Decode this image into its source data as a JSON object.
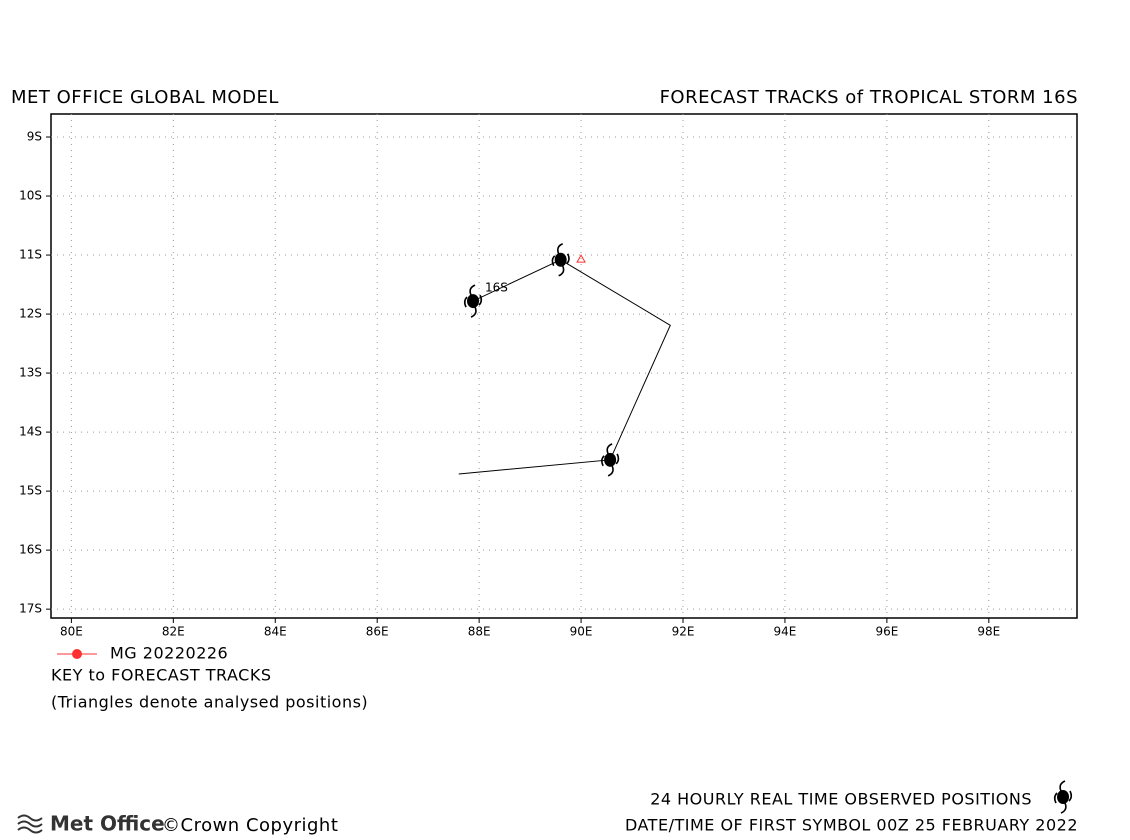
{
  "chart_data": {
    "type": "track",
    "title_left": "MET OFFICE GLOBAL MODEL",
    "title_right": "FORECAST TRACKS of TROPICAL STORM 16S",
    "xlim": [
      79.6,
      99.73
    ],
    "ylim": [
      -17.15,
      -8.61
    ],
    "xticks": [
      {
        "value": 80,
        "label": "80E"
      },
      {
        "value": 82,
        "label": "82E"
      },
      {
        "value": 84,
        "label": "84E"
      },
      {
        "value": 86,
        "label": "86E"
      },
      {
        "value": 88,
        "label": "88E"
      },
      {
        "value": 90,
        "label": "90E"
      },
      {
        "value": 92,
        "label": "92E"
      },
      {
        "value": 94,
        "label": "94E"
      },
      {
        "value": 96,
        "label": "96E"
      },
      {
        "value": 98,
        "label": "98E"
      }
    ],
    "yticks": [
      {
        "value": -9,
        "label": "9S"
      },
      {
        "value": -10,
        "label": "10S"
      },
      {
        "value": -11,
        "label": "11S"
      },
      {
        "value": -12,
        "label": "12S"
      },
      {
        "value": -13,
        "label": "13S"
      },
      {
        "value": -14,
        "label": "14S"
      },
      {
        "value": -15,
        "label": "15S"
      },
      {
        "value": -16,
        "label": "16S"
      },
      {
        "value": -17,
        "label": "17S"
      }
    ],
    "grid": true,
    "storm_label": "16S",
    "observed_track": {
      "lon": [
        87.6,
        90.57,
        91.75,
        89.6,
        87.88
      ],
      "lat": [
        -14.71,
        -14.47,
        -12.19,
        -11.08,
        -11.78
      ],
      "color": "#000000"
    },
    "observed_positions": {
      "lon": [
        90.57,
        89.6,
        87.88
      ],
      "lat": [
        -14.47,
        -11.08,
        -11.78
      ],
      "color": "#000000"
    },
    "series": [
      {
        "name": "MG 20220226",
        "color": "#ff3030",
        "analysed_lon": [
          90.0
        ],
        "analysed_lat": [
          -11.07
        ]
      }
    ],
    "key_title": "KEY to FORECAST TRACKS",
    "key_note": "(Triangles denote analysed positions)",
    "footer_observed": "24 HOURLY REAL TIME OBSERVED POSITIONS",
    "footer_date": "DATE/TIME OF FIRST SYMBOL 00Z 25 FEBRUARY 2022",
    "logo": "Met Office",
    "copyright": "©Crown Copyright"
  }
}
